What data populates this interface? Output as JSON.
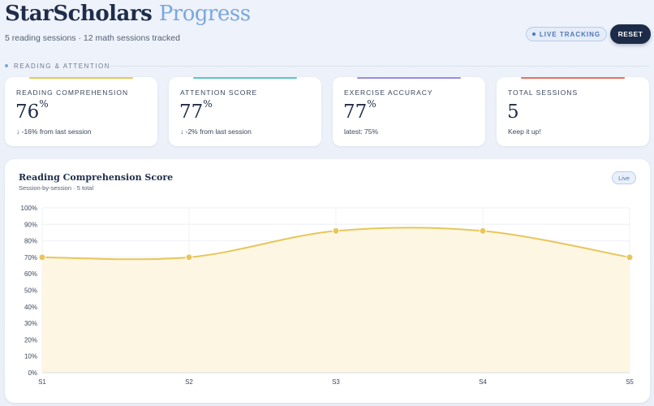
{
  "header": {
    "title_main": "StarScholars",
    "title_accent": "Progress",
    "subtitle": "5 reading sessions · 12 math sessions tracked",
    "live_label": "LIVE TRACKING",
    "reset_label": "RESET"
  },
  "section": {
    "label": "READING & ATTENTION"
  },
  "cards": [
    {
      "label": "READING COMPREHENSION",
      "value": "76",
      "unit": "%",
      "note": "↓ -16% from last session",
      "color": "#e8c65a"
    },
    {
      "label": "ATTENTION SCORE",
      "value": "77",
      "unit": "%",
      "note": "↓ -2% from last session",
      "color": "#5fc7c0"
    },
    {
      "label": "EXERCISE ACCURACY",
      "value": "77",
      "unit": "%",
      "note": "latest: 75%",
      "color": "#9c8ce0"
    },
    {
      "label": "TOTAL SESSIONS",
      "value": "5",
      "unit": "",
      "note": "Keep it up!",
      "color": "#e6705f"
    }
  ],
  "chart_panel": {
    "title": "Reading Comprehension Score",
    "subtitle": "Session-by-session · 5 total",
    "badge": "Live"
  },
  "chart_data": {
    "type": "line",
    "title": "Reading Comprehension Score",
    "categories": [
      "S1",
      "S2",
      "S3",
      "S4",
      "S5"
    ],
    "series": [
      {
        "values": [
          70,
          70,
          86,
          86,
          70
        ]
      }
    ],
    "ylim": [
      0,
      100
    ],
    "yticks": [
      "0%",
      "10%",
      "20%",
      "30%",
      "40%",
      "50%",
      "60%",
      "70%",
      "80%",
      "90%",
      "100%"
    ],
    "grid": true,
    "line_color": "#e8c65a",
    "fill_color": "#fdf6e3"
  }
}
